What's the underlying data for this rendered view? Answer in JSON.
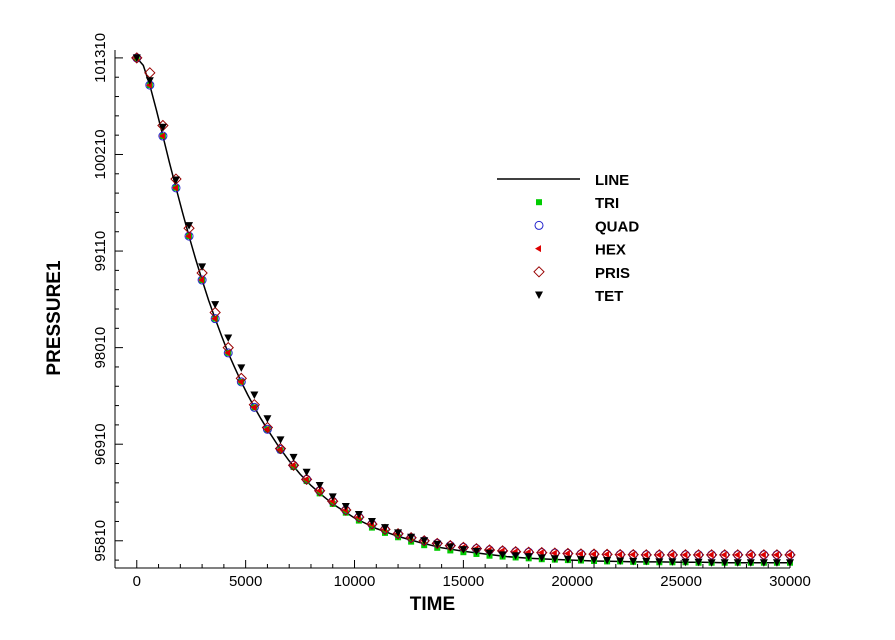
{
  "chart_data": {
    "type": "line",
    "xlabel": "TIME",
    "ylabel": "PRESSURE1",
    "xlim": [
      -1000,
      30000
    ],
    "ylim": [
      95500,
      101400
    ],
    "x_ticks": [
      0,
      5000,
      10000,
      15000,
      20000,
      25000,
      30000
    ],
    "x_tick_labels": [
      "0",
      "5000",
      "10000",
      "15000",
      "20000",
      "25000",
      "30000"
    ],
    "y_ticks": [
      95810,
      96910,
      98010,
      99110,
      100210,
      101310
    ],
    "y_tick_labels": [
      "95810",
      "96910",
      "98010",
      "99110",
      "100210",
      "101310"
    ],
    "grid": false,
    "legend_position": "upper-right",
    "colors": {
      "LINE": "#000000",
      "TRI": "#00cc00",
      "QUAD": "#2222cc",
      "HEX": "#dd0000",
      "PRIS": "#990000",
      "TET": "#000000"
    },
    "series": [
      {
        "name": "LINE",
        "style": "line",
        "x": [
          0,
          300,
          600,
          900,
          1200,
          1500,
          1800,
          2100,
          2400,
          2700,
          3000,
          3300,
          3600,
          3900,
          4200,
          4500,
          4800,
          5100,
          5400,
          5700,
          6000,
          6500,
          7000,
          7500,
          8000,
          8500,
          9000,
          9500,
          10000,
          11000,
          12000,
          13000,
          14000,
          15000,
          16000,
          17000,
          18000,
          19000,
          20000,
          21000,
          22000,
          23000,
          24000,
          25000,
          26000,
          27000,
          28000,
          29000,
          30000
        ],
        "y": [
          101310,
          101225,
          101000,
          100715,
          100420,
          100120,
          99830,
          99550,
          99280,
          99020,
          98780,
          98550,
          98340,
          98140,
          97950,
          97780,
          97620,
          97470,
          97330,
          97200,
          97080,
          96890,
          96720,
          96570,
          96440,
          96330,
          96230,
          96150,
          96070,
          95950,
          95860,
          95790,
          95730,
          95690,
          95660,
          95630,
          95610,
          95600,
          95590,
          95580,
          95575,
          95570,
          95570,
          95565,
          95565,
          95560,
          95560,
          95560,
          95560
        ]
      },
      {
        "name": "TRI",
        "style": "square",
        "x": [
          0,
          600,
          1200,
          1800,
          2400,
          3000,
          3600,
          4200,
          4800,
          5400,
          6000,
          6600,
          7200,
          7800,
          8400,
          9000,
          9600,
          10200,
          10800,
          11400,
          12000,
          12600,
          13200,
          13800,
          14400,
          15000,
          15600,
          16200,
          16800,
          17400,
          18000,
          18600,
          19200,
          19800,
          20400,
          21000,
          21600,
          22200,
          22800,
          23400,
          24000,
          24600,
          25200,
          25800,
          26400,
          27000,
          27600,
          28200,
          28800,
          29400,
          30000
        ],
        "y": [
          101310,
          101000,
          100420,
          99830,
          99280,
          98780,
          98340,
          97950,
          97620,
          97330,
          97080,
          96840,
          96650,
          96490,
          96350,
          96230,
          96130,
          96040,
          95960,
          95900,
          95850,
          95800,
          95760,
          95730,
          95700,
          95680,
          95660,
          95640,
          95630,
          95620,
          95610,
          95600,
          95595,
          95590,
          95585,
          95580,
          95575,
          95575,
          95570,
          95570,
          95565,
          95565,
          95565,
          95560,
          95560,
          95560,
          95560,
          95560,
          95560,
          95560,
          95560
        ]
      },
      {
        "name": "QUAD",
        "style": "circle",
        "x": [
          0,
          600,
          1200,
          1800,
          2400,
          3000,
          3600,
          4200,
          4800,
          5400,
          6000,
          6600,
          7200,
          7800,
          8400,
          9000,
          9600,
          10200,
          10800,
          11400,
          12000,
          12600,
          13200,
          13800,
          14400,
          15000,
          15600,
          16200,
          16800,
          17400,
          18000,
          18600,
          19200,
          19800,
          20400,
          21000,
          21600,
          22200,
          22800,
          23400,
          24000,
          24600,
          25200,
          25800,
          26400,
          27000,
          27600,
          28200,
          28800,
          29400,
          30000
        ],
        "y": [
          101310,
          101000,
          100420,
          99830,
          99280,
          98780,
          98340,
          97950,
          97620,
          97330,
          97080,
          96850,
          96670,
          96510,
          96380,
          96260,
          96160,
          96080,
          96000,
          95940,
          95890,
          95845,
          95810,
          95780,
          95755,
          95735,
          95720,
          95705,
          95695,
          95685,
          95680,
          95675,
          95670,
          95665,
          95660,
          95658,
          95655,
          95653,
          95652,
          95650,
          95650,
          95650,
          95650,
          95650,
          95650,
          95650,
          95650,
          95650,
          95650,
          95650,
          95650
        ]
      },
      {
        "name": "HEX",
        "style": "triangle-left",
        "x": [
          0,
          600,
          1200,
          1800,
          2400,
          3000,
          3600,
          4200,
          4800,
          5400,
          6000,
          6600,
          7200,
          7800,
          8400,
          9000,
          9600,
          10200,
          10800,
          11400,
          12000,
          12600,
          13200,
          13800,
          14400,
          15000,
          15600,
          16200,
          16800,
          17400,
          18000,
          18600,
          19200,
          19800,
          20400,
          21000,
          21600,
          22200,
          22800,
          23400,
          24000,
          24600,
          25200,
          25800,
          26400,
          27000,
          27600,
          28200,
          28800,
          29400,
          30000
        ],
        "y": [
          101310,
          101000,
          100420,
          99830,
          99280,
          98780,
          98340,
          97950,
          97620,
          97330,
          97080,
          96850,
          96670,
          96510,
          96380,
          96260,
          96160,
          96080,
          96000,
          95940,
          95890,
          95845,
          95810,
          95780,
          95755,
          95735,
          95720,
          95705,
          95695,
          95685,
          95680,
          95675,
          95670,
          95665,
          95660,
          95658,
          95655,
          95653,
          95652,
          95650,
          95650,
          95650,
          95650,
          95650,
          95650,
          95650,
          95650,
          95650,
          95650,
          95650,
          95650
        ]
      },
      {
        "name": "PRIS",
        "style": "diamond",
        "x": [
          0,
          600,
          1200,
          1800,
          2400,
          3000,
          3600,
          4200,
          4800,
          5400,
          6000,
          6600,
          7200,
          7800,
          8400,
          9000,
          9600,
          10200,
          10800,
          11400,
          12000,
          12600,
          13200,
          13800,
          14400,
          15000,
          15600,
          16200,
          16800,
          17400,
          18000,
          18600,
          19200,
          19800,
          20400,
          21000,
          21600,
          22200,
          22800,
          23400,
          24000,
          24600,
          25200,
          25800,
          26400,
          27000,
          27600,
          28200,
          28800,
          29400,
          30000
        ],
        "y": [
          101310,
          101140,
          100540,
          99930,
          99370,
          98860,
          98410,
          98010,
          97660,
          97360,
          97100,
          96860,
          96670,
          96510,
          96380,
          96260,
          96160,
          96080,
          96000,
          95940,
          95890,
          95845,
          95810,
          95780,
          95755,
          95735,
          95720,
          95705,
          95695,
          95685,
          95680,
          95675,
          95670,
          95665,
          95660,
          95658,
          95655,
          95653,
          95652,
          95650,
          95650,
          95650,
          95650,
          95650,
          95650,
          95650,
          95650,
          95650,
          95650,
          95650,
          95650
        ]
      },
      {
        "name": "TET",
        "style": "triangle-down",
        "x": [
          0,
          600,
          1200,
          1800,
          2400,
          3000,
          3600,
          4200,
          4800,
          5400,
          6000,
          6600,
          7200,
          7800,
          8400,
          9000,
          9600,
          10200,
          10800,
          11400,
          12000,
          12600,
          13200,
          13800,
          14400,
          15000,
          15600,
          16200,
          16800,
          17400,
          18000,
          18600,
          19200,
          19800,
          20400,
          21000,
          21600,
          22200,
          22800,
          23400,
          24000,
          24600,
          25200,
          25800,
          26400,
          27000,
          27600,
          28200,
          28800,
          29400,
          30000
        ],
        "y": [
          101310,
          101050,
          100520,
          99920,
          99400,
          98930,
          98500,
          98120,
          97780,
          97470,
          97200,
          96960,
          96760,
          96590,
          96440,
          96310,
          96200,
          96110,
          96030,
          95960,
          95900,
          95850,
          95810,
          95770,
          95740,
          95710,
          95690,
          95670,
          95650,
          95640,
          95630,
          95615,
          95605,
          95600,
          95595,
          95590,
          95585,
          95580,
          95575,
          95575,
          95570,
          95570,
          95565,
          95565,
          95560,
          95560,
          95560,
          95560,
          95560,
          95560,
          95560
        ]
      }
    ]
  }
}
